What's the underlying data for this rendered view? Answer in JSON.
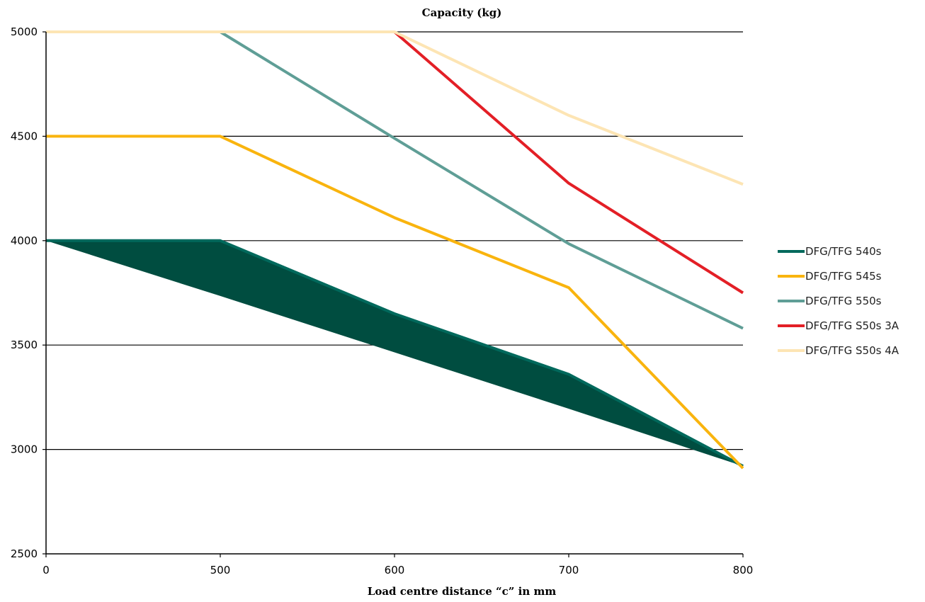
{
  "chart_data": {
    "type": "line",
    "title": "Capacity (kg)",
    "xlabel": "Load centre distance “c” in mm",
    "ylabel": "",
    "x_categories": [
      "0",
      "500",
      "600",
      "700",
      "800"
    ],
    "ylim": [
      2500,
      5000
    ],
    "y_ticks": [
      "2500",
      "3000",
      "3500",
      "4000",
      "4500",
      "5000"
    ],
    "grid": "horizontal",
    "legend_position": "right",
    "series": [
      {
        "name": "DFG/TFG 540s",
        "color": "#00695c",
        "values": [
          4000,
          4000,
          3650,
          3360,
          2920
        ],
        "lower_band": [
          4000,
          3735,
          3465,
          3195,
          2920
        ],
        "band_color": "#004d40"
      },
      {
        "name": "DFG/TFG 545s",
        "color": "#f9b40e",
        "values": [
          4500,
          4500,
          4110,
          3775,
          2910
        ]
      },
      {
        "name": "DFG/TFG 550s",
        "color": "#5f9e96",
        "values": [
          null,
          5000,
          4490,
          3985,
          3580
        ]
      },
      {
        "name": "DFG/TFG S50s 3A",
        "color": "#e31f26",
        "values": [
          null,
          null,
          5000,
          4275,
          3750
        ]
      },
      {
        "name": "DFG/TFG S50s 4A",
        "color": "#fde5b4",
        "values": [
          5000,
          5000,
          5000,
          4600,
          4270
        ]
      }
    ]
  }
}
